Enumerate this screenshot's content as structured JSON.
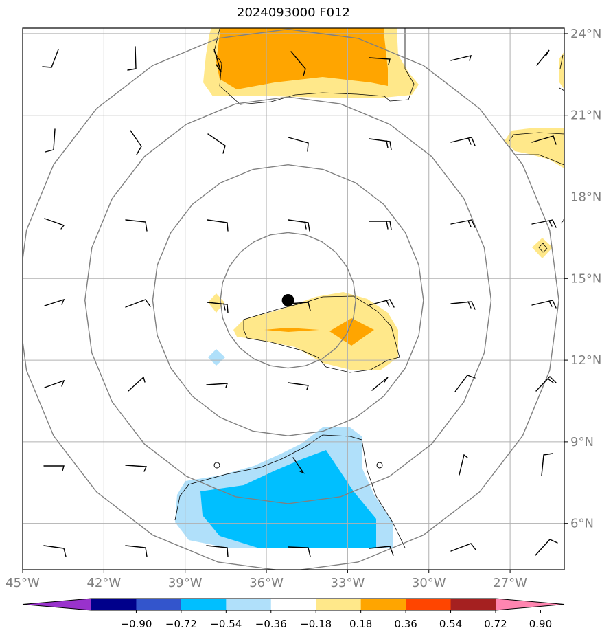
{
  "title": "2024093000 F012",
  "map": {
    "lon_range": [
      -45,
      -25
    ],
    "lat_range": [
      4.3,
      24.2
    ],
    "lon_ticks": [
      {
        "value": -45,
        "label": "45°W"
      },
      {
        "value": -42,
        "label": "42°W"
      },
      {
        "value": -39,
        "label": "39°W"
      },
      {
        "value": -36,
        "label": "36°W"
      },
      {
        "value": -33,
        "label": "33°W"
      },
      {
        "value": -30,
        "label": "30°W"
      },
      {
        "value": -27,
        "label": "27°W"
      }
    ],
    "lat_ticks": [
      {
        "value": 24,
        "label": "24°N"
      },
      {
        "value": 21,
        "label": "21°N"
      },
      {
        "value": 18,
        "label": "18°N"
      },
      {
        "value": 15,
        "label": "15°N"
      },
      {
        "value": 12,
        "label": "12°N"
      },
      {
        "value": 9,
        "label": "9°N"
      },
      {
        "value": 6,
        "label": "6°N"
      }
    ],
    "storm_center": {
      "lon": -35.2,
      "lat": 14.2
    },
    "range_ring_radii_deg": [
      2.5,
      5,
      7.5,
      10
    ]
  },
  "colorbar": {
    "levels": [
      "−0.90",
      "−0.72",
      "−0.54",
      "−0.36",
      "−0.18",
      "0.18",
      "0.36",
      "0.54",
      "0.72",
      "0.90"
    ],
    "colors": [
      "#9932cc",
      "#00008b",
      "#3355cc",
      "#00bfff",
      "#b0e0fa",
      "#ffffff",
      "#ffe88a",
      "#ffa500",
      "#ff4500",
      "#a52020",
      "#ff85b0"
    ]
  },
  "colors": {
    "light_yellow": "#ffe88a",
    "orange": "#ffa500",
    "cyan": "#00bfff",
    "light_blue": "#b0e0fa",
    "grid": "#b0b0b0",
    "ring": "#808080"
  }
}
